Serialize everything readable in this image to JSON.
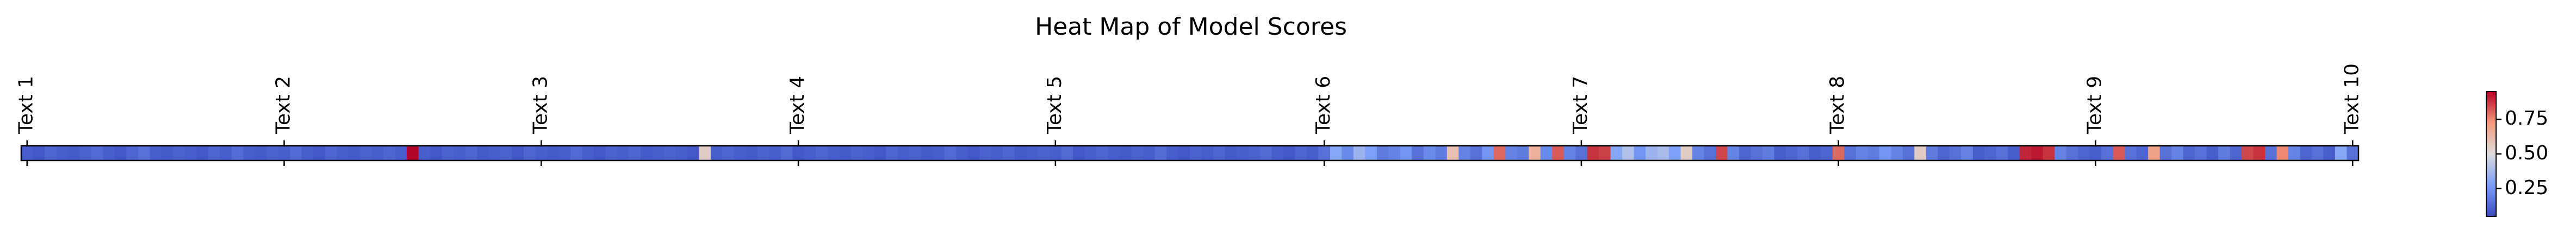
{
  "chart_data": {
    "type": "heatmap",
    "title": "Heat Map of Model Scores",
    "colormap": [
      "#3b4cc0",
      "#7b9ff9",
      "#dddcdc",
      "#f49a7b",
      "#b40426"
    ],
    "clim": [
      0.05,
      0.95
    ],
    "cticks": [
      {
        "value": 0.25,
        "label": "0.25"
      },
      {
        "value": 0.5,
        "label": "0.50"
      },
      {
        "value": 0.75,
        "label": "0.75"
      }
    ],
    "xlim": [
      -0.5,
      199.5
    ],
    "xticks": [
      {
        "value": 0,
        "label": "Text 1"
      },
      {
        "value": 22,
        "label": "Text 2"
      },
      {
        "value": 44,
        "label": "Text 3"
      },
      {
        "value": 66,
        "label": "Text 4"
      },
      {
        "value": 88,
        "label": "Text 5"
      },
      {
        "value": 111,
        "label": "Text 6"
      },
      {
        "value": 133,
        "label": "Text 7"
      },
      {
        "value": 155,
        "label": "Text 8"
      },
      {
        "value": 177,
        "label": "Text 9"
      },
      {
        "value": 199,
        "label": "Text 10"
      }
    ],
    "values": [
      0.1,
      0.08,
      0.12,
      0.1,
      0.09,
      0.11,
      0.13,
      0.1,
      0.08,
      0.12,
      0.15,
      0.1,
      0.09,
      0.11,
      0.1,
      0.08,
      0.12,
      0.1,
      0.14,
      0.1,
      0.09,
      0.11,
      0.1,
      0.13,
      0.1,
      0.08,
      0.12,
      0.1,
      0.09,
      0.11,
      0.1,
      0.12,
      0.1,
      0.95,
      0.1,
      0.08,
      0.11,
      0.1,
      0.12,
      0.09,
      0.1,
      0.11,
      0.08,
      0.12,
      0.1,
      0.09,
      0.1,
      0.13,
      0.1,
      0.08,
      0.11,
      0.1,
      0.12,
      0.09,
      0.1,
      0.11,
      0.1,
      0.08,
      0.55,
      0.1,
      0.12,
      0.1,
      0.09,
      0.11,
      0.1,
      0.13,
      0.08,
      0.1,
      0.12,
      0.1,
      0.09,
      0.11,
      0.1,
      0.08,
      0.12,
      0.1,
      0.11,
      0.09,
      0.1,
      0.13,
      0.1,
      0.08,
      0.11,
      0.1,
      0.12,
      0.09,
      0.1,
      0.11,
      0.1,
      0.13,
      0.08,
      0.1,
      0.12,
      0.1,
      0.09,
      0.11,
      0.1,
      0.14,
      0.1,
      0.08,
      0.11,
      0.1,
      0.12,
      0.09,
      0.1,
      0.11,
      0.13,
      0.1,
      0.08,
      0.12,
      0.1,
      0.15,
      0.3,
      0.22,
      0.35,
      0.28,
      0.18,
      0.2,
      0.25,
      0.15,
      0.22,
      0.18,
      0.6,
      0.2,
      0.15,
      0.25,
      0.8,
      0.2,
      0.18,
      0.65,
      0.22,
      0.82,
      0.2,
      0.15,
      0.88,
      0.86,
      0.3,
      0.4,
      0.25,
      0.35,
      0.38,
      0.28,
      0.55,
      0.2,
      0.15,
      0.85,
      0.2,
      0.12,
      0.15,
      0.18,
      0.1,
      0.12,
      0.15,
      0.1,
      0.12,
      0.8,
      0.15,
      0.2,
      0.18,
      0.25,
      0.2,
      0.15,
      0.55,
      0.18,
      0.12,
      0.15,
      0.2,
      0.1,
      0.12,
      0.15,
      0.1,
      0.9,
      0.92,
      0.88,
      0.2,
      0.15,
      0.12,
      0.1,
      0.15,
      0.82,
      0.15,
      0.12,
      0.7,
      0.15,
      0.2,
      0.12,
      0.15,
      0.1,
      0.18,
      0.12,
      0.85,
      0.88,
      0.15,
      0.75,
      0.2,
      0.12,
      0.15,
      0.1,
      0.3,
      0.15
    ]
  }
}
